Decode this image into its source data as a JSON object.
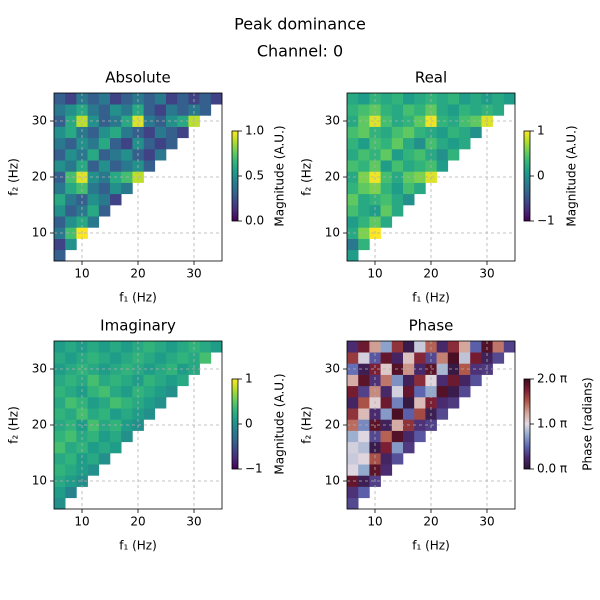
{
  "suptitle": "Peak dominance",
  "subtitle": "Channel: 0",
  "chart_data": [
    {
      "type": "heatmap",
      "title": "Absolute",
      "xlabel": "f₁ (Hz)",
      "ylabel": "f₂ (Hz)",
      "colorbar_label": "Magnitude (A.U.)",
      "cmap": "viridis",
      "clim": [
        0,
        1
      ],
      "cticks": [
        {
          "value": 0,
          "label": "0.0"
        },
        {
          "value": 0.5,
          "label": "0.5"
        },
        {
          "value": 1,
          "label": "1.0"
        }
      ],
      "xlim": [
        5,
        35
      ],
      "ylim": [
        5,
        35
      ],
      "xticks": [
        10,
        20,
        30
      ],
      "yticks": [
        10,
        20,
        30
      ],
      "grid": true,
      "x": [
        6,
        8,
        10,
        12,
        14,
        16,
        18,
        20,
        22,
        24,
        26,
        28,
        30,
        32,
        34
      ],
      "y": [
        6,
        8,
        10,
        12,
        14,
        16,
        18,
        20,
        22,
        24,
        26,
        28,
        30,
        32,
        34
      ],
      "z": [
        [
          0.3,
          null,
          null,
          null,
          null,
          null,
          null,
          null,
          null,
          null,
          null,
          null,
          null,
          null,
          null
        ],
        [
          0.2,
          0.5,
          null,
          null,
          null,
          null,
          null,
          null,
          null,
          null,
          null,
          null,
          null,
          null,
          null
        ],
        [
          0.4,
          0.7,
          1.0,
          null,
          null,
          null,
          null,
          null,
          null,
          null,
          null,
          null,
          null,
          null,
          null
        ],
        [
          0.3,
          0.5,
          0.6,
          0.4,
          null,
          null,
          null,
          null,
          null,
          null,
          null,
          null,
          null,
          null,
          null
        ],
        [
          0.5,
          0.3,
          0.4,
          0.6,
          0.3,
          null,
          null,
          null,
          null,
          null,
          null,
          null,
          null,
          null,
          null
        ],
        [
          0.6,
          0.4,
          0.3,
          0.5,
          0.4,
          0.2,
          null,
          null,
          null,
          null,
          null,
          null,
          null,
          null,
          null
        ],
        [
          0.4,
          0.6,
          0.7,
          0.4,
          0.3,
          0.5,
          0.4,
          null,
          null,
          null,
          null,
          null,
          null,
          null,
          null
        ],
        [
          0.3,
          0.7,
          0.95,
          0.5,
          0.4,
          0.6,
          0.7,
          0.9,
          null,
          null,
          null,
          null,
          null,
          null,
          null
        ],
        [
          0.5,
          0.4,
          0.6,
          0.3,
          0.5,
          0.3,
          0.4,
          0.5,
          0.3,
          null,
          null,
          null,
          null,
          null,
          null
        ],
        [
          0.3,
          0.5,
          0.4,
          0.6,
          0.3,
          0.4,
          0.5,
          0.3,
          0.2,
          0.4,
          null,
          null,
          null,
          null,
          null
        ],
        [
          0.4,
          0.3,
          0.5,
          0.4,
          0.6,
          0.3,
          0.2,
          0.5,
          0.3,
          0.2,
          0.3,
          null,
          null,
          null,
          null
        ],
        [
          0.5,
          0.6,
          0.4,
          0.3,
          0.5,
          0.6,
          0.4,
          0.3,
          0.2,
          0.4,
          0.3,
          0.2,
          null,
          null,
          null
        ],
        [
          0.3,
          0.6,
          0.9,
          0.5,
          0.3,
          0.4,
          0.6,
          0.95,
          0.4,
          0.3,
          0.5,
          0.6,
          0.9,
          null,
          null
        ],
        [
          0.4,
          0.5,
          0.6,
          0.4,
          0.3,
          0.5,
          0.4,
          0.6,
          0.3,
          0.2,
          0.4,
          0.3,
          0.4,
          0.3,
          null
        ],
        [
          0.3,
          0.2,
          0.4,
          0.3,
          0.4,
          0.2,
          0.3,
          0.4,
          0.3,
          0.4,
          0.2,
          0.3,
          0.2,
          0.3,
          0.2
        ]
      ]
    },
    {
      "type": "heatmap",
      "title": "Real",
      "xlabel": "f₁ (Hz)",
      "ylabel": "f₂ (Hz)",
      "colorbar_label": "Magnitude (A.U.)",
      "cmap": "viridis",
      "clim": [
        -1,
        1
      ],
      "cticks": [
        {
          "value": -1,
          "label": "−1"
        },
        0,
        1
      ],
      "xlim": [
        5,
        35
      ],
      "ylim": [
        5,
        35
      ],
      "xticks": [
        10,
        20,
        30
      ],
      "yticks": [
        10,
        20,
        30
      ],
      "grid": true,
      "x": [
        6,
        8,
        10,
        12,
        14,
        16,
        18,
        20,
        22,
        24,
        26,
        28,
        30,
        32,
        34
      ],
      "y": [
        6,
        8,
        10,
        12,
        14,
        16,
        18,
        20,
        22,
        24,
        26,
        28,
        30,
        32,
        34
      ],
      "z": [
        [
          0.1,
          null,
          null,
          null,
          null,
          null,
          null,
          null,
          null,
          null,
          null,
          null,
          null,
          null,
          null
        ],
        [
          -0.2,
          0.3,
          null,
          null,
          null,
          null,
          null,
          null,
          null,
          null,
          null,
          null,
          null,
          null,
          null
        ],
        [
          0.2,
          0.6,
          1.0,
          null,
          null,
          null,
          null,
          null,
          null,
          null,
          null,
          null,
          null,
          null,
          null
        ],
        [
          0.1,
          0.3,
          0.5,
          0.2,
          null,
          null,
          null,
          null,
          null,
          null,
          null,
          null,
          null,
          null,
          null
        ],
        [
          0.4,
          0.2,
          0.1,
          0.5,
          0.2,
          null,
          null,
          null,
          null,
          null,
          null,
          null,
          null,
          null,
          null
        ],
        [
          0.5,
          0.2,
          0.3,
          0.4,
          0.2,
          0.0,
          null,
          null,
          null,
          null,
          null,
          null,
          null,
          null,
          null
        ],
        [
          0.3,
          0.5,
          0.6,
          0.3,
          0.1,
          0.4,
          0.2,
          null,
          null,
          null,
          null,
          null,
          null,
          null,
          null
        ],
        [
          0.2,
          0.6,
          0.95,
          0.4,
          0.2,
          0.5,
          0.6,
          0.9,
          null,
          null,
          null,
          null,
          null,
          null,
          null
        ],
        [
          0.4,
          0.3,
          0.5,
          0.1,
          0.4,
          0.2,
          0.3,
          0.4,
          0.1,
          null,
          null,
          null,
          null,
          null,
          null
        ],
        [
          0.2,
          0.4,
          0.3,
          0.5,
          0.1,
          0.3,
          0.4,
          0.2,
          0.0,
          0.3,
          null,
          null,
          null,
          null,
          null
        ],
        [
          0.3,
          0.1,
          0.4,
          0.3,
          0.5,
          0.2,
          0.0,
          0.4,
          0.2,
          0.1,
          0.2,
          null,
          null,
          null,
          null
        ],
        [
          0.4,
          0.5,
          0.3,
          0.2,
          0.4,
          0.5,
          0.3,
          0.2,
          0.1,
          0.3,
          0.2,
          0.0,
          null,
          null,
          null
        ],
        [
          0.2,
          0.5,
          0.9,
          0.4,
          0.2,
          0.3,
          0.5,
          0.95,
          0.3,
          0.2,
          0.4,
          0.5,
          0.9,
          null,
          null
        ],
        [
          0.3,
          0.4,
          0.5,
          0.3,
          0.2,
          0.4,
          0.3,
          0.5,
          0.2,
          0.1,
          0.3,
          0.2,
          0.3,
          0.2,
          null
        ],
        [
          0.2,
          0.1,
          0.3,
          0.2,
          0.3,
          0.1,
          0.2,
          0.3,
          0.2,
          0.3,
          0.1,
          0.2,
          0.1,
          0.2,
          0.1
        ]
      ]
    },
    {
      "type": "heatmap",
      "title": "Imaginary",
      "xlabel": "f₁ (Hz)",
      "ylabel": "f₂ (Hz)",
      "colorbar_label": "Magnitude (A.U.)",
      "cmap": "viridis",
      "clim": [
        -1,
        1
      ],
      "cticks": [
        {
          "value": -1,
          "label": "−1"
        },
        0,
        1
      ],
      "xlim": [
        5,
        35
      ],
      "ylim": [
        5,
        35
      ],
      "xticks": [
        10,
        20,
        30
      ],
      "yticks": [
        10,
        20,
        30
      ],
      "grid": true,
      "x": [
        6,
        8,
        10,
        12,
        14,
        16,
        18,
        20,
        22,
        24,
        26,
        28,
        30,
        32,
        34
      ],
      "y": [
        6,
        8,
        10,
        12,
        14,
        16,
        18,
        20,
        22,
        24,
        26,
        28,
        30,
        32,
        34
      ],
      "z": [
        [
          0.0,
          null,
          null,
          null,
          null,
          null,
          null,
          null,
          null,
          null,
          null,
          null,
          null,
          null,
          null
        ],
        [
          0.1,
          -0.1,
          null,
          null,
          null,
          null,
          null,
          null,
          null,
          null,
          null,
          null,
          null,
          null,
          null
        ],
        [
          0.2,
          0.1,
          0.0,
          null,
          null,
          null,
          null,
          null,
          null,
          null,
          null,
          null,
          null,
          null,
          null
        ],
        [
          0.3,
          0.2,
          0.1,
          0.0,
          null,
          null,
          null,
          null,
          null,
          null,
          null,
          null,
          null,
          null,
          null
        ],
        [
          0.2,
          0.3,
          0.1,
          0.2,
          0.0,
          null,
          null,
          null,
          null,
          null,
          null,
          null,
          null,
          null,
          null
        ],
        [
          0.4,
          0.2,
          0.3,
          0.1,
          0.2,
          0.1,
          null,
          null,
          null,
          null,
          null,
          null,
          null,
          null,
          null
        ],
        [
          0.3,
          0.4,
          0.2,
          0.3,
          0.1,
          0.2,
          0.0,
          null,
          null,
          null,
          null,
          null,
          null,
          null,
          null
        ],
        [
          0.2,
          0.3,
          0.1,
          0.4,
          0.2,
          0.3,
          0.1,
          0.0,
          null,
          null,
          null,
          null,
          null,
          null,
          null
        ],
        [
          0.3,
          0.2,
          0.4,
          0.2,
          0.3,
          0.1,
          0.2,
          0.1,
          0.0,
          null,
          null,
          null,
          null,
          null,
          null
        ],
        [
          0.2,
          0.4,
          0.3,
          0.1,
          0.2,
          0.4,
          0.3,
          0.2,
          0.1,
          0.0,
          null,
          null,
          null,
          null,
          null
        ],
        [
          0.3,
          0.2,
          0.1,
          0.3,
          0.4,
          0.2,
          0.1,
          0.3,
          0.2,
          0.1,
          0.0,
          null,
          null,
          null,
          null
        ],
        [
          0.2,
          0.3,
          0.2,
          0.4,
          0.2,
          0.3,
          0.2,
          0.1,
          0.3,
          0.2,
          0.1,
          0.2,
          null,
          null,
          null
        ],
        [
          0.1,
          0.2,
          0.3,
          0.2,
          0.1,
          0.2,
          0.3,
          0.2,
          0.1,
          0.2,
          0.3,
          0.1,
          0.2,
          null,
          null
        ],
        [
          0.2,
          0.1,
          0.2,
          0.3,
          0.2,
          0.1,
          0.2,
          0.3,
          0.2,
          0.1,
          0.2,
          0.3,
          0.2,
          0.4,
          null
        ],
        [
          0.1,
          0.2,
          0.1,
          0.2,
          0.1,
          0.2,
          0.1,
          0.2,
          0.3,
          0.2,
          0.1,
          0.2,
          0.3,
          0.2,
          0.1
        ]
      ]
    },
    {
      "type": "heatmap",
      "title": "Phase",
      "xlabel": "f₁ (Hz)",
      "ylabel": "f₂ (Hz)",
      "colorbar_label": "Phase (radians)",
      "cmap": "twilight_shifted",
      "clim": [
        0,
        6.28319
      ],
      "cticks": [
        {
          "value": 0,
          "label": "0.0 π"
        },
        {
          "value": 3.14159,
          "label": "1.0 π"
        },
        {
          "value": 6.28319,
          "label": "2.0 π"
        }
      ],
      "xlim": [
        5,
        35
      ],
      "ylim": [
        5,
        35
      ],
      "xticks": [
        10,
        20,
        30
      ],
      "yticks": [
        10,
        20,
        30
      ],
      "grid": true,
      "x": [
        6,
        8,
        10,
        12,
        14,
        16,
        18,
        20,
        22,
        24,
        26,
        28,
        30,
        32,
        34
      ],
      "y": [
        6,
        8,
        10,
        12,
        14,
        16,
        18,
        20,
        22,
        24,
        26,
        28,
        30,
        32,
        34
      ],
      "z": [
        [
          1.2,
          null,
          null,
          null,
          null,
          null,
          null,
          null,
          null,
          null,
          null,
          null,
          null,
          null,
          null
        ],
        [
          0.9,
          1.5,
          null,
          null,
          null,
          null,
          null,
          null,
          null,
          null,
          null,
          null,
          null,
          null,
          null
        ],
        [
          5.8,
          0.4,
          1.1,
          null,
          null,
          null,
          null,
          null,
          null,
          null,
          null,
          null,
          null,
          null,
          null
        ],
        [
          3.1,
          2.4,
          5.9,
          0.8,
          null,
          null,
          null,
          null,
          null,
          null,
          null,
          null,
          null,
          null,
          null
        ],
        [
          2.9,
          3.2,
          4.8,
          0.6,
          1.3,
          null,
          null,
          null,
          null,
          null,
          null,
          null,
          null,
          null,
          null
        ],
        [
          3.0,
          2.7,
          0.3,
          5.5,
          2.2,
          1.0,
          null,
          null,
          null,
          null,
          null,
          null,
          null,
          null,
          null
        ],
        [
          2.5,
          3.1,
          1.2,
          4.6,
          6.0,
          0.7,
          1.4,
          null,
          null,
          null,
          null,
          null,
          null,
          null,
          null
        ],
        [
          4.5,
          2.0,
          5.9,
          0.5,
          3.8,
          5.2,
          0.9,
          1.1,
          null,
          null,
          null,
          null,
          null,
          null,
          null
        ],
        [
          5.2,
          3.6,
          0.8,
          2.2,
          6.1,
          1.5,
          4.9,
          0.4,
          1.2,
          null,
          null,
          null,
          null,
          null,
          null
        ],
        [
          0.6,
          4.8,
          3.3,
          5.7,
          1.9,
          0.2,
          3.6,
          5.5,
          0.8,
          1.0,
          null,
          null,
          null,
          null,
          null
        ],
        [
          5.6,
          1.1,
          4.2,
          0.7,
          3.0,
          5.8,
          1.6,
          2.4,
          6.0,
          0.3,
          1.2,
          null,
          null,
          null,
          null
        ],
        [
          3.8,
          5.9,
          0.9,
          4.4,
          2.1,
          0.5,
          5.3,
          3.2,
          0.8,
          5.7,
          0.6,
          1.3,
          null,
          null,
          null
        ],
        [
          1.7,
          0.4,
          5.5,
          3.4,
          6.0,
          4.1,
          0.7,
          5.9,
          2.6,
          0.2,
          4.7,
          0.9,
          1.0,
          null,
          null
        ],
        [
          5.1,
          3.0,
          1.4,
          5.8,
          0.6,
          3.5,
          5.4,
          1.2,
          4.3,
          6.1,
          2.8,
          5.6,
          0.5,
          1.2,
          null
        ],
        [
          0.8,
          5.7,
          4.0,
          2.3,
          5.2,
          0.3,
          2.9,
          4.6,
          0.7,
          5.3,
          3.9,
          1.5,
          6.0,
          4.4,
          1.1
        ]
      ]
    }
  ]
}
